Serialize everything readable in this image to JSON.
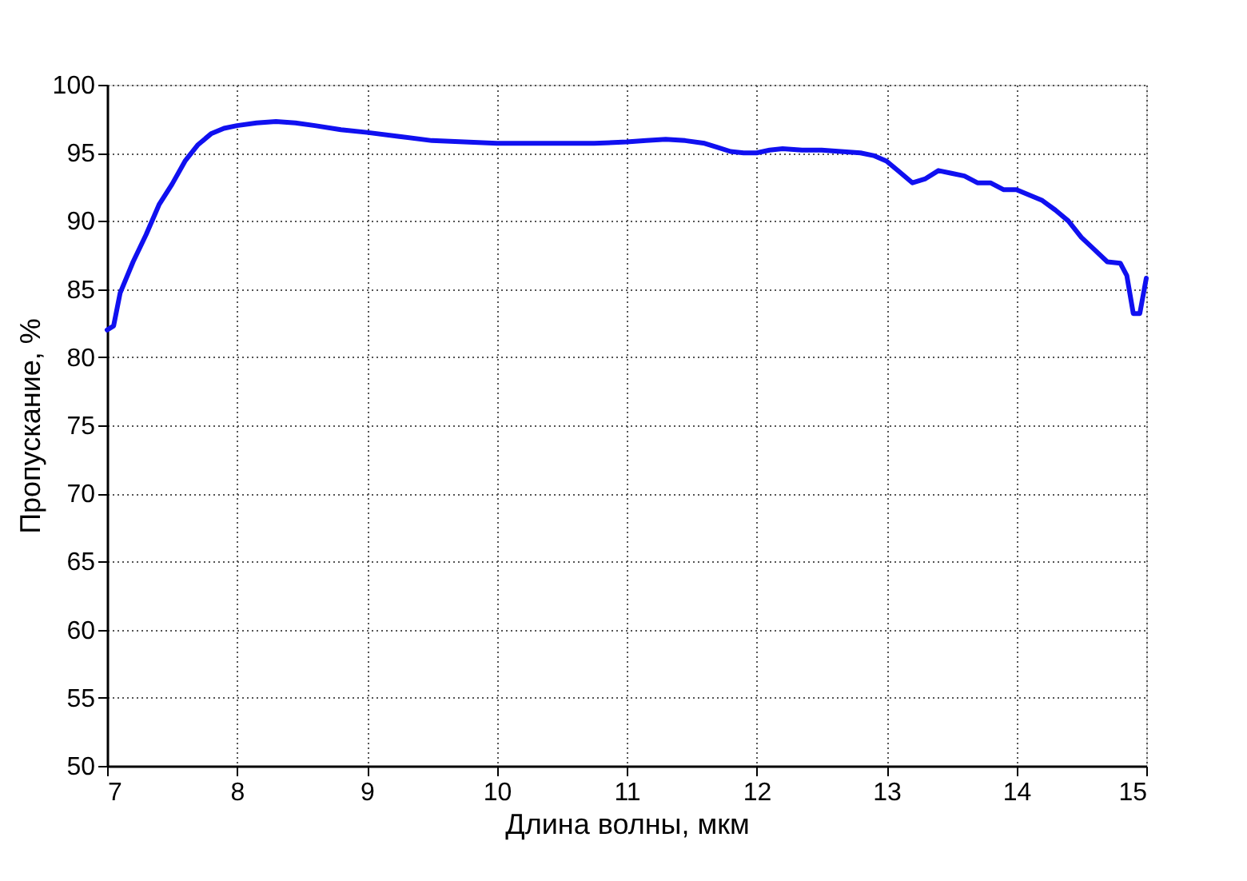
{
  "chart_data": {
    "type": "line",
    "xlabel": "Длина волны, мкм",
    "ylabel": "Пропускание, %",
    "xlim": [
      7,
      15
    ],
    "xticks": [
      7,
      8,
      9,
      10,
      11,
      12,
      13,
      14,
      15
    ],
    "ylim": [
      50,
      100
    ],
    "yticks": [
      50,
      55,
      60,
      65,
      70,
      75,
      80,
      85,
      90,
      95,
      100
    ],
    "grid": true,
    "line_style": "solid",
    "series": [
      {
        "color": "#1010f0",
        "x": [
          7.0,
          7.05,
          7.1,
          7.2,
          7.3,
          7.4,
          7.5,
          7.6,
          7.7,
          7.8,
          7.9,
          8.0,
          8.15,
          8.3,
          8.45,
          8.6,
          8.8,
          9.0,
          9.25,
          9.5,
          9.75,
          10.0,
          10.25,
          10.5,
          10.75,
          11.0,
          11.15,
          11.3,
          11.45,
          11.6,
          11.7,
          11.8,
          11.9,
          12.0,
          12.1,
          12.2,
          12.35,
          12.5,
          12.65,
          12.8,
          12.9,
          13.0,
          13.1,
          13.2,
          13.3,
          13.4,
          13.5,
          13.6,
          13.7,
          13.8,
          13.9,
          14.0,
          14.1,
          14.2,
          14.3,
          14.4,
          14.5,
          14.6,
          14.7,
          14.8,
          14.85,
          14.9,
          14.95,
          15.0
        ],
        "values": [
          82.0,
          82.3,
          84.7,
          87.0,
          89.0,
          91.2,
          92.7,
          94.4,
          95.6,
          96.4,
          96.8,
          97.0,
          97.2,
          97.3,
          97.2,
          97.0,
          96.7,
          96.5,
          96.2,
          95.9,
          95.8,
          95.7,
          95.7,
          95.7,
          95.7,
          95.8,
          95.9,
          96.0,
          95.9,
          95.7,
          95.4,
          95.1,
          95.0,
          95.0,
          95.2,
          95.3,
          95.2,
          95.2,
          95.1,
          95.0,
          94.8,
          94.4,
          93.6,
          92.8,
          93.1,
          93.7,
          93.5,
          93.3,
          92.8,
          92.8,
          92.3,
          92.3,
          91.9,
          91.5,
          90.8,
          90.0,
          88.8,
          87.9,
          87.0,
          86.9,
          86.0,
          83.2,
          83.2,
          85.8
        ]
      }
    ]
  }
}
